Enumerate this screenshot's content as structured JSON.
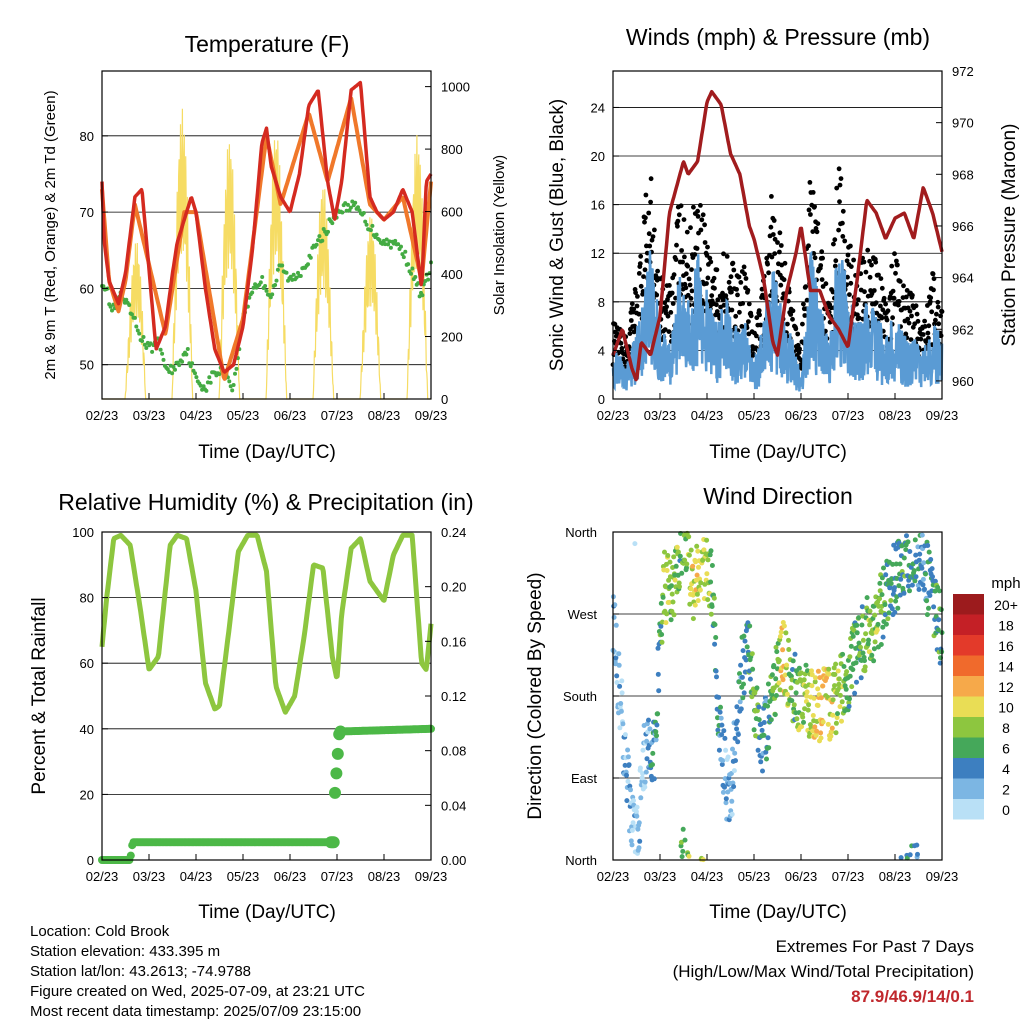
{
  "colors": {
    "red": "#d42a20",
    "orange": "#f0782a",
    "green": "#44ab43",
    "yellow": "#f6dc64",
    "black": "#000000",
    "blue": "#5a9bd4",
    "maroon": "#a11c1e",
    "rh": "#8dc63f",
    "precip": "#4cb847",
    "extremes": "#c0282d"
  },
  "x_tick_labels": [
    "02/23",
    "03/23",
    "04/23",
    "05/23",
    "06/23",
    "07/23",
    "08/23",
    "09/23"
  ],
  "panels": {
    "temperature": {
      "title": "Temperature (F)",
      "xlabel": "Time (Day/UTC)",
      "ylabel_left": "2m & 9m T (Red, Orange) & 2m Td (Green)",
      "ylabel_right": "Solar Insolation (Yellow)"
    },
    "winds": {
      "title": "Winds (mph) & Pressure (mb)",
      "xlabel": "Time (Day/UTC)",
      "ylabel_left": "Sonic Wind & Gust (Blue, Black)",
      "ylabel_right": "Station Pressure (Maroon)"
    },
    "humidity": {
      "title": "Relative Humidity (%) & Precipitation (in)",
      "xlabel": "Time (Day/UTC)",
      "ylabel_left": "Percent & Total Rainfall"
    },
    "direction": {
      "title": "Wind Direction",
      "xlabel": "Time (Day/UTC)",
      "ylabel_left": "Direction (Colored By Speed)",
      "colorbar_title": "mph",
      "colorbar_labels": [
        "20+",
        "18",
        "16",
        "14",
        "12",
        "10",
        "8",
        "6",
        "4",
        "2",
        "0"
      ],
      "colorbar_colors": [
        "#9c1b1d",
        "#c42026",
        "#e33a2a",
        "#f06a2c",
        "#f6a94a",
        "#e9dd55",
        "#8dc63f",
        "#45a85a",
        "#3d7fc0",
        "#7cb6e3",
        "#b9e0f6"
      ]
    }
  },
  "chart_data": [
    {
      "type": "line",
      "title": "Temperature (F)",
      "xlabel": "Time (Day/UTC)",
      "ylabel": "2m & 9m T (Red, Orange) & 2m Td (Green)",
      "y2label": "Solar Insolation (Yellow)",
      "x_range": [
        0,
        7
      ],
      "ylim": [
        45.5,
        88.5
      ],
      "y_ticks": [
        50,
        60,
        70,
        80
      ],
      "y2lim": [
        0,
        1050
      ],
      "y2_ticks": [
        0,
        200,
        400,
        600,
        800,
        1000
      ],
      "grid": true,
      "series": [
        {
          "name": "2m T",
          "color": "red",
          "x": [
            0,
            0.05,
            0.15,
            0.35,
            0.5,
            0.7,
            0.85,
            0.95,
            1.15,
            1.35,
            1.5,
            1.6,
            1.75,
            1.9,
            2.0,
            2.2,
            2.4,
            2.6,
            2.8,
            3.0,
            3.2,
            3.4,
            3.5,
            3.6,
            3.8,
            4.0,
            4.2,
            4.4,
            4.6,
            4.8,
            4.95,
            5.1,
            5.3,
            5.5,
            5.7,
            5.85,
            6.0,
            6.2,
            6.4,
            6.6,
            6.8,
            6.9,
            7.0
          ],
          "y": [
            74,
            66,
            61,
            58,
            62,
            72,
            73,
            66,
            52,
            55,
            62,
            66,
            69,
            72,
            70,
            60,
            52,
            49,
            50,
            55,
            65,
            79,
            81,
            76,
            72,
            70,
            75,
            84,
            86,
            74,
            69,
            74,
            86,
            87,
            72,
            70,
            69,
            70,
            73,
            70,
            60,
            74,
            75
          ]
        },
        {
          "name": "9m T",
          "color": "orange",
          "x": [
            0,
            0.15,
            0.35,
            0.5,
            0.7,
            1.35,
            1.75,
            2.0,
            2.6,
            3.0,
            3.5,
            3.8,
            4.4,
            4.8,
            5.3,
            5.7,
            6.0,
            6.4,
            6.8,
            7.0
          ],
          "y": [
            73,
            61,
            57,
            61,
            71,
            54,
            70,
            70,
            48,
            56,
            80,
            71,
            83,
            74,
            85,
            71,
            69,
            72,
            61,
            74
          ]
        },
        {
          "name": "2m Td",
          "color": "green",
          "x": [
            0,
            0.1,
            0.2,
            0.4,
            0.6,
            0.8,
            1.0,
            1.2,
            1.4,
            1.6,
            1.8,
            2.0,
            2.2,
            2.4,
            2.6,
            2.8,
            3.0,
            3.2,
            3.4,
            3.6,
            3.8,
            4.0,
            4.2,
            4.4,
            4.6,
            4.8,
            5.0,
            5.3,
            5.5,
            5.7,
            6.0,
            6.2,
            6.4,
            6.6,
            6.8,
            7.0
          ],
          "y": [
            61,
            60,
            57,
            59,
            57,
            54,
            52,
            53,
            49,
            50,
            52,
            48,
            47,
            49,
            49,
            47,
            56,
            60,
            61,
            59,
            63,
            61,
            62,
            64,
            66,
            68,
            70,
            71,
            70,
            68,
            66,
            66,
            65,
            62,
            59,
            63
          ]
        },
        {
          "name": "Solar Insolation",
          "color": "yellow",
          "axis": "y2",
          "daily_peak_hour_utc": 17,
          "x": [
            0.5,
            1.5,
            2.5,
            3.5,
            4.5,
            5.5,
            6.5
          ],
          "y": [
            380,
            960,
            820,
            900,
            740,
            520,
            850
          ]
        }
      ]
    },
    {
      "type": "scatter",
      "title": "Winds (mph) & Pressure (mb)",
      "xlabel": "Time (Day/UTC)",
      "ylabel": "Sonic Wind & Gust (Blue, Black)",
      "y2label": "Station Pressure (Maroon)",
      "x_range": [
        0,
        7
      ],
      "ylim": [
        0,
        27
      ],
      "y_ticks": [
        0,
        4,
        8,
        12,
        16,
        20,
        24
      ],
      "y2lim": [
        959.3,
        972
      ],
      "y2_ticks": [
        960,
        962,
        964,
        966,
        968,
        970,
        972
      ],
      "grid": true,
      "series": [
        {
          "name": "Gust",
          "color": "black",
          "x": [
            0,
            0.3,
            0.6,
            0.8,
            1.0,
            1.2,
            1.4,
            1.6,
            1.8,
            2.0,
            2.2,
            2.4,
            2.6,
            2.8,
            3.0,
            3.2,
            3.4,
            3.6,
            3.8,
            4.0,
            4.2,
            4.4,
            4.6,
            4.8,
            5.0,
            5.2,
            5.4,
            5.6,
            5.8,
            6.0,
            6.2,
            6.4,
            6.6,
            6.8,
            7.0
          ],
          "y": [
            6,
            5,
            12,
            20,
            10,
            9,
            16,
            13,
            18,
            14,
            10,
            13,
            10,
            11,
            5,
            10,
            17,
            12,
            8,
            4,
            18,
            13,
            7,
            19,
            14,
            10,
            12,
            11,
            8,
            12,
            9,
            8,
            6,
            10,
            8
          ]
        },
        {
          "name": "Sonic Wind",
          "color": "blue",
          "x": [
            0,
            0.3,
            0.6,
            0.8,
            1.0,
            1.2,
            1.4,
            1.6,
            1.8,
            2.0,
            2.2,
            2.4,
            2.6,
            2.8,
            3.0,
            3.2,
            3.4,
            3.6,
            3.8,
            4.0,
            4.2,
            4.4,
            4.6,
            4.8,
            5.0,
            5.2,
            5.4,
            5.6,
            5.8,
            6.0,
            6.2,
            6.4,
            6.6,
            6.8,
            7.0
          ],
          "y": [
            4,
            3,
            7,
            12,
            6,
            5,
            10,
            8,
            12,
            9,
            6,
            8,
            6,
            7,
            3,
            6,
            11,
            7,
            5,
            2,
            12,
            8,
            4,
            13,
            9,
            6,
            8,
            7,
            5,
            7,
            5,
            5,
            4,
            6,
            5
          ]
        },
        {
          "name": "Station Pressure",
          "color": "maroon",
          "axis": "y2",
          "x": [
            0,
            0.2,
            0.4,
            0.5,
            0.6,
            0.8,
            1.0,
            1.2,
            1.5,
            1.6,
            1.8,
            2.0,
            2.1,
            2.3,
            2.5,
            2.7,
            2.9,
            3.0,
            3.2,
            3.4,
            3.5,
            3.7,
            3.9,
            4.0,
            4.2,
            4.4,
            4.6,
            4.8,
            5.0,
            5.2,
            5.4,
            5.6,
            5.8,
            6.0,
            6.2,
            6.4,
            6.6,
            6.8,
            7.0
          ],
          "y": [
            961,
            962,
            960.5,
            960,
            961.5,
            961,
            962.5,
            966.5,
            968.5,
            968,
            968.5,
            970.8,
            971.2,
            970.7,
            968.8,
            968,
            966,
            965.5,
            964,
            961.5,
            961,
            963.5,
            965,
            966,
            963.5,
            963.5,
            962.5,
            962,
            961.3,
            964,
            967,
            966.5,
            965.5,
            966.3,
            966.5,
            965.5,
            967.5,
            966.5,
            965
          ]
        }
      ]
    },
    {
      "type": "line",
      "title": "Relative Humidity (%) & Precipitation (in)",
      "xlabel": "Time (Day/UTC)",
      "ylabel": "Percent & Total Rainfall",
      "x_range": [
        0,
        7
      ],
      "ylim": [
        0,
        100
      ],
      "y_ticks": [
        0,
        20,
        40,
        60,
        80,
        100
      ],
      "y2lim": [
        0,
        0.24
      ],
      "y2_ticks": [
        0.0,
        0.04,
        0.08,
        0.12,
        0.16,
        0.2,
        0.24
      ],
      "grid": true,
      "series": [
        {
          "name": "Relative Humidity",
          "color": "rh",
          "x": [
            0,
            0.1,
            0.25,
            0.4,
            0.6,
            0.8,
            1.0,
            1.2,
            1.45,
            1.6,
            1.8,
            2.0,
            2.2,
            2.4,
            2.5,
            2.7,
            2.9,
            3.1,
            3.3,
            3.5,
            3.7,
            3.9,
            4.1,
            4.3,
            4.5,
            4.7,
            4.9,
            5.0,
            5.1,
            5.3,
            5.5,
            5.7,
            6.0,
            6.2,
            6.4,
            6.6,
            6.8,
            6.9,
            7.0
          ],
          "y": [
            65,
            80,
            98,
            99,
            96,
            78,
            58,
            62,
            96,
            99,
            98,
            82,
            54,
            46,
            47,
            70,
            94,
            99,
            99,
            88,
            53,
            45,
            50,
            68,
            90,
            89,
            62,
            55,
            75,
            95,
            98,
            85,
            79,
            93,
            99,
            99,
            60,
            58,
            72
          ]
        },
        {
          "name": "Total Rainfall",
          "color": "precip",
          "axis": "y2",
          "x": [
            0,
            0.6,
            0.65,
            4.9,
            4.95,
            5.05,
            7.0
          ],
          "y": [
            0.0,
            0.0,
            0.013,
            0.013,
            0.045,
            0.094,
            0.096
          ]
        }
      ]
    },
    {
      "type": "scatter",
      "title": "Wind Direction",
      "xlabel": "Time (Day/UTC)",
      "ylabel": "Direction (Colored By Speed)",
      "x_range": [
        0,
        7
      ],
      "ylim": [
        0,
        360
      ],
      "y_tick_labels": [
        "North",
        "East",
        "South",
        "West",
        "North"
      ],
      "colorbar": {
        "title": "mph",
        "labels": [
          "20+",
          "18",
          "16",
          "14",
          "12",
          "10",
          "8",
          "6",
          "4",
          "2",
          "0"
        ]
      },
      "series": [
        {
          "name": "Direction (deg)",
          "colored_by": "speed (mph)",
          "x": [
            0,
            0.1,
            0.2,
            0.3,
            0.4,
            0.5,
            0.7,
            0.9,
            1.0,
            1.1,
            1.3,
            1.5,
            1.7,
            1.9,
            2.1,
            2.3,
            2.5,
            2.7,
            2.9,
            3.0,
            3.2,
            3.4,
            3.6,
            3.8,
            4.0,
            4.2,
            4.4,
            4.6,
            4.8,
            5.0,
            5.2,
            5.4,
            5.6,
            5.8,
            6.0,
            6.2,
            6.4,
            6.6,
            6.8,
            7.0
          ],
          "y": [
            270,
            200,
            150,
            90,
            40,
            20,
            130,
            120,
            260,
            300,
            300,
            360,
            300,
            330,
            300,
            120,
            60,
            200,
            230,
            180,
            130,
            180,
            230,
            190,
            180,
            170,
            170,
            170,
            180,
            200,
            230,
            250,
            260,
            290,
            310,
            330,
            340,
            330,
            280,
            250
          ],
          "speed": [
            3,
            2,
            1,
            2,
            2,
            1,
            2,
            4,
            6,
            9,
            8,
            6,
            10,
            9,
            7,
            3,
            2,
            4,
            6,
            7,
            4,
            6,
            11,
            6,
            8,
            9,
            11,
            10,
            8,
            7,
            5,
            7,
            8,
            6,
            5,
            6,
            5,
            4,
            5,
            6
          ]
        }
      ]
    }
  ],
  "info": {
    "location": "Location: Cold Brook",
    "elevation": "Station elevation: 433.395 m",
    "latlon": "Station lat/lon: 43.2613; -74.9788",
    "created": "Figure created on Wed, 2025-07-09, at 23:21 UTC",
    "recent": "Most recent data timestamp: 2025/07/09 23:15:00"
  },
  "extremes": {
    "title": "Extremes For Past 7 Days",
    "subtitle": "(High/Low/Max Wind/Total Precipitation)",
    "values": "87.9/46.9/14/0.1"
  }
}
